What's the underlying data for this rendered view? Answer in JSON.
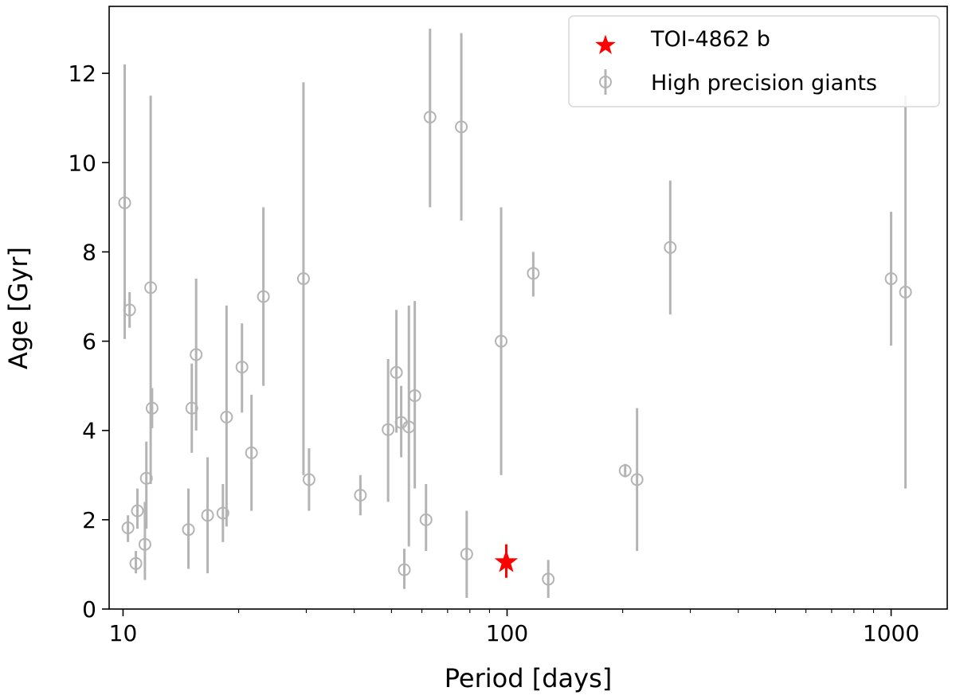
{
  "chart_data": {
    "type": "scatter",
    "xlabel": "Period [days]",
    "ylabel": "Age [Gyr]",
    "x_scale": "log",
    "xlim": [
      9.2,
      1400
    ],
    "ylim": [
      0,
      13.5
    ],
    "x_ticks": [
      {
        "value": 10,
        "label": "10"
      },
      {
        "value": 100,
        "label": "100"
      },
      {
        "value": 1000,
        "label": "1000"
      }
    ],
    "y_ticks": [
      {
        "value": 0,
        "label": "0"
      },
      {
        "value": 2,
        "label": "2"
      },
      {
        "value": 4,
        "label": "4"
      },
      {
        "value": 6,
        "label": "6"
      },
      {
        "value": 8,
        "label": "8"
      },
      {
        "value": 10,
        "label": "10"
      },
      {
        "value": 12,
        "label": "12"
      }
    ],
    "grid": false,
    "legend_position": "top-right",
    "series": [
      {
        "name": "TOI-4862 b",
        "marker": "star",
        "color": "#ff0000",
        "points": [
          {
            "x": 99.5,
            "y": 1.05,
            "ylo": 0.7,
            "yhi": 1.45
          }
        ]
      },
      {
        "name": "High precision giants",
        "marker": "open-circle",
        "color": "#b4b4b4",
        "points": [
          {
            "x": 10.1,
            "y": 9.1,
            "ylo": 6.05,
            "yhi": 12.2
          },
          {
            "x": 10.4,
            "y": 6.7,
            "ylo": 6.3,
            "yhi": 7.1
          },
          {
            "x": 10.3,
            "y": 1.82,
            "ylo": 1.5,
            "yhi": 2.1
          },
          {
            "x": 10.9,
            "y": 2.2,
            "ylo": 1.8,
            "yhi": 2.7
          },
          {
            "x": 10.8,
            "y": 1.02,
            "ylo": 0.8,
            "yhi": 1.3
          },
          {
            "x": 11.4,
            "y": 1.45,
            "ylo": 0.65,
            "yhi": 2.4
          },
          {
            "x": 11.5,
            "y": 2.93,
            "ylo": 1.8,
            "yhi": 3.75
          },
          {
            "x": 11.8,
            "y": 7.2,
            "ylo": 2.8,
            "yhi": 11.5
          },
          {
            "x": 11.9,
            "y": 4.5,
            "ylo": 4.05,
            "yhi": 4.95
          },
          {
            "x": 14.8,
            "y": 1.78,
            "ylo": 0.9,
            "yhi": 2.7
          },
          {
            "x": 15.1,
            "y": 4.5,
            "ylo": 3.5,
            "yhi": 5.5
          },
          {
            "x": 15.5,
            "y": 5.7,
            "ylo": 4.0,
            "yhi": 7.4
          },
          {
            "x": 16.6,
            "y": 2.1,
            "ylo": 0.8,
            "yhi": 3.4
          },
          {
            "x": 18.2,
            "y": 2.15,
            "ylo": 1.5,
            "yhi": 2.8
          },
          {
            "x": 18.6,
            "y": 4.3,
            "ylo": 1.85,
            "yhi": 6.8
          },
          {
            "x": 20.4,
            "y": 5.42,
            "ylo": 4.4,
            "yhi": 6.4
          },
          {
            "x": 21.6,
            "y": 3.5,
            "ylo": 2.2,
            "yhi": 4.8
          },
          {
            "x": 23.2,
            "y": 7.0,
            "ylo": 5.0,
            "yhi": 9.0
          },
          {
            "x": 29.5,
            "y": 7.4,
            "ylo": 3.0,
            "yhi": 11.8
          },
          {
            "x": 30.5,
            "y": 2.9,
            "ylo": 2.2,
            "yhi": 3.6
          },
          {
            "x": 41.5,
            "y": 2.55,
            "ylo": 2.1,
            "yhi": 3.0
          },
          {
            "x": 49.0,
            "y": 4.02,
            "ylo": 2.4,
            "yhi": 5.6
          },
          {
            "x": 51.5,
            "y": 5.3,
            "ylo": 3.95,
            "yhi": 6.7
          },
          {
            "x": 53.0,
            "y": 4.18,
            "ylo": 3.4,
            "yhi": 5.0
          },
          {
            "x": 54.0,
            "y": 0.88,
            "ylo": 0.45,
            "yhi": 1.35
          },
          {
            "x": 55.5,
            "y": 4.08,
            "ylo": 1.4,
            "yhi": 6.8
          },
          {
            "x": 57.5,
            "y": 4.78,
            "ylo": 2.7,
            "yhi": 6.9
          },
          {
            "x": 61.5,
            "y": 2.0,
            "ylo": 1.3,
            "yhi": 2.8
          },
          {
            "x": 63.0,
            "y": 11.02,
            "ylo": 9.0,
            "yhi": 13.0
          },
          {
            "x": 76.0,
            "y": 10.8,
            "ylo": 8.7,
            "yhi": 12.9
          },
          {
            "x": 78.5,
            "y": 1.23,
            "ylo": 0.25,
            "yhi": 2.2
          },
          {
            "x": 96.5,
            "y": 6.0,
            "ylo": 3.0,
            "yhi": 9.0
          },
          {
            "x": 117.0,
            "y": 7.52,
            "ylo": 7.0,
            "yhi": 8.0
          },
          {
            "x": 128.0,
            "y": 0.67,
            "ylo": 0.25,
            "yhi": 1.1
          },
          {
            "x": 203.0,
            "y": 3.1,
            "ylo": 2.95,
            "yhi": 3.25
          },
          {
            "x": 218.0,
            "y": 2.9,
            "ylo": 1.3,
            "yhi": 4.5
          },
          {
            "x": 266.0,
            "y": 8.1,
            "ylo": 6.6,
            "yhi": 9.6
          },
          {
            "x": 1000.0,
            "y": 7.4,
            "ylo": 5.9,
            "yhi": 8.9
          },
          {
            "x": 1090.0,
            "y": 7.1,
            "ylo": 2.7,
            "yhi": 11.5
          }
        ]
      }
    ]
  }
}
